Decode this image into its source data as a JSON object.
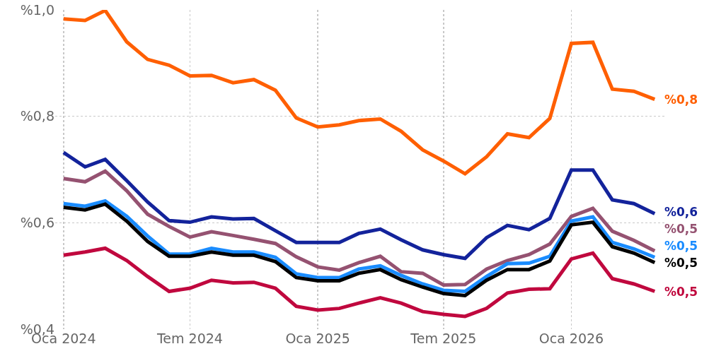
{
  "chart_data": {
    "type": "line",
    "x": [
      "2024-01",
      "2024-02",
      "2024-03",
      "2024-04",
      "2024-05",
      "2024-06",
      "2024-07",
      "2024-08",
      "2024-09",
      "2024-10",
      "2024-11",
      "2024-12",
      "2025-01",
      "2025-02",
      "2025-03",
      "2025-04",
      "2025-05",
      "2025-06",
      "2025-07",
      "2025-08",
      "2025-09",
      "2025-10",
      "2025-11",
      "2025-12",
      "2026-01",
      "2026-02",
      "2026-03",
      "2026-04",
      "2026-05"
    ],
    "series": [
      {
        "color": "#ff5f00",
        "values": [
          0.983,
          0.98,
          0.999,
          0.94,
          0.907,
          0.896,
          0.876,
          0.877,
          0.863,
          0.869,
          0.849,
          0.797,
          0.78,
          0.784,
          0.792,
          0.795,
          0.772,
          0.737,
          0.716,
          0.692,
          0.724,
          0.767,
          0.76,
          0.796,
          0.937,
          0.939,
          0.851,
          0.847,
          0.832
        ],
        "value_labels": [
          null,
          null,
          null,
          null,
          null,
          null,
          null,
          null,
          null,
          null,
          null,
          null,
          null,
          null,
          null,
          null,
          null,
          null,
          null,
          null,
          null,
          null,
          null,
          null,
          null,
          null,
          null,
          null,
          "%0,8"
        ]
      },
      {
        "color": "#13239b",
        "values": [
          0.732,
          0.705,
          0.719,
          0.679,
          0.639,
          0.604,
          0.601,
          0.611,
          0.607,
          0.608,
          0.585,
          0.563,
          0.563,
          0.563,
          0.58,
          0.588,
          0.568,
          0.549,
          0.54,
          0.533,
          0.572,
          0.595,
          0.587,
          0.608,
          0.699,
          0.699,
          0.643,
          0.636,
          0.617
        ],
        "value_labels": [
          null,
          null,
          null,
          null,
          null,
          null,
          null,
          null,
          null,
          null,
          null,
          null,
          null,
          null,
          null,
          null,
          null,
          null,
          null,
          null,
          null,
          null,
          null,
          null,
          null,
          null,
          null,
          null,
          "%0,6"
        ]
      },
      {
        "color": "#955271",
        "values": [
          0.683,
          0.677,
          0.697,
          0.66,
          0.616,
          0.593,
          0.573,
          0.583,
          0.576,
          0.569,
          0.561,
          0.536,
          0.517,
          0.511,
          0.525,
          0.537,
          0.508,
          0.505,
          0.483,
          0.484,
          0.513,
          0.529,
          0.54,
          0.56,
          0.612,
          0.627,
          0.584,
          0.567,
          0.547
        ],
        "value_labels": [
          null,
          null,
          null,
          null,
          null,
          null,
          null,
          null,
          null,
          null,
          null,
          null,
          null,
          null,
          null,
          null,
          null,
          null,
          null,
          null,
          null,
          null,
          null,
          null,
          null,
          null,
          null,
          null,
          "%0,5"
        ]
      },
      {
        "color": "#1a8cff",
        "values": [
          0.636,
          0.631,
          0.641,
          0.612,
          0.575,
          0.541,
          0.541,
          0.552,
          0.545,
          0.545,
          0.535,
          0.504,
          0.497,
          0.497,
          0.513,
          0.519,
          0.501,
          0.485,
          0.473,
          0.471,
          0.499,
          0.523,
          0.524,
          0.537,
          0.603,
          0.611,
          0.563,
          0.551,
          0.535
        ],
        "value_labels": [
          null,
          null,
          null,
          null,
          null,
          null,
          null,
          null,
          null,
          null,
          null,
          null,
          null,
          null,
          null,
          null,
          null,
          null,
          null,
          null,
          null,
          null,
          null,
          null,
          null,
          null,
          null,
          null,
          "%0,5"
        ]
      },
      {
        "color": "#000000",
        "values": [
          0.629,
          0.624,
          0.635,
          0.603,
          0.565,
          0.537,
          0.537,
          0.545,
          0.539,
          0.539,
          0.527,
          0.497,
          0.491,
          0.491,
          0.505,
          0.512,
          0.493,
          0.479,
          0.467,
          0.463,
          0.492,
          0.512,
          0.512,
          0.528,
          0.596,
          0.601,
          0.555,
          0.543,
          0.525
        ],
        "value_labels": [
          null,
          null,
          null,
          null,
          null,
          null,
          null,
          null,
          null,
          null,
          null,
          null,
          null,
          null,
          null,
          null,
          null,
          null,
          null,
          null,
          null,
          null,
          null,
          null,
          null,
          null,
          null,
          null,
          "%0,5"
        ]
      },
      {
        "color": "#c0083e",
        "values": [
          0.539,
          0.545,
          0.552,
          0.529,
          0.499,
          0.471,
          0.477,
          0.492,
          0.487,
          0.488,
          0.477,
          0.443,
          0.436,
          0.439,
          0.449,
          0.459,
          0.449,
          0.433,
          0.428,
          0.424,
          0.439,
          0.468,
          0.475,
          0.476,
          0.532,
          0.543,
          0.495,
          0.485,
          0.471
        ],
        "value_labels": [
          null,
          null,
          null,
          null,
          null,
          null,
          null,
          null,
          null,
          null,
          null,
          null,
          null,
          null,
          null,
          null,
          null,
          null,
          null,
          null,
          null,
          null,
          null,
          null,
          null,
          null,
          null,
          null,
          "%0,5"
        ]
      }
    ],
    "xlim": [
      "2023-12-20",
      "2026-05-16"
    ],
    "xticks": [
      {
        "value": "2024-01",
        "label": "Oca 2024"
      },
      {
        "value": "2024-07",
        "label": "Tem 2024"
      },
      {
        "value": "2025-01",
        "label": "Oca 2025"
      },
      {
        "value": "2025-07",
        "label": "Tem 2025"
      },
      {
        "value": "2026-01",
        "label": "Oca 2026"
      }
    ],
    "ylim": [
      0.4,
      1.0
    ],
    "yticks": [
      {
        "value": 0.4,
        "label": "%0,4"
      },
      {
        "value": 0.6,
        "label": "%0,6"
      },
      {
        "value": 0.8,
        "label": "%0,8"
      },
      {
        "value": 1.0,
        "label": "%1,0"
      }
    ],
    "grid": true,
    "marker": "none",
    "line_style": "solid"
  }
}
